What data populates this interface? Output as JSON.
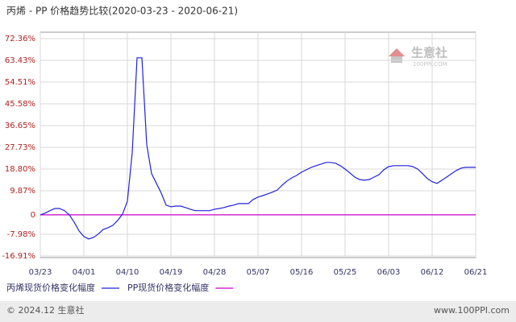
{
  "chart_data": {
    "type": "line",
    "title": "丙烯 - PP 价格趋势比较(2020-03-23 - 2020-06-21)",
    "categories": [
      "03/23",
      null,
      null,
      null,
      null,
      null,
      null,
      null,
      null,
      "04/01",
      null,
      null,
      null,
      null,
      null,
      null,
      null,
      null,
      "04/10",
      null,
      null,
      null,
      null,
      null,
      null,
      null,
      null,
      "04/19",
      null,
      null,
      null,
      null,
      null,
      null,
      null,
      null,
      "04/28",
      null,
      null,
      null,
      null,
      null,
      null,
      null,
      null,
      "05/07",
      null,
      null,
      null,
      null,
      null,
      null,
      null,
      null,
      "05/16",
      null,
      null,
      null,
      null,
      null,
      null,
      null,
      null,
      "05/25",
      null,
      null,
      null,
      null,
      null,
      null,
      null,
      null,
      "06/03",
      null,
      null,
      null,
      null,
      null,
      null,
      null,
      null,
      "06/12",
      null,
      null,
      null,
      null,
      null,
      null,
      null,
      null,
      "06/21"
    ],
    "series": [
      {
        "name": "丙烯现货价格变化幅度",
        "color": "#2222dd",
        "values": [
          0,
          0.7,
          1.7,
          2.6,
          2.6,
          1.7,
          0,
          -3.0,
          -6.6,
          -8.9,
          -9.9,
          -9.3,
          -7.9,
          -6.0,
          -5.3,
          -4.3,
          -2.3,
          0.3,
          5.6,
          25.5,
          64.5,
          64.5,
          28.8,
          16.9,
          12.9,
          8.9,
          4.0,
          3.3,
          3.6,
          3.6,
          3.0,
          2.3,
          1.7,
          1.7,
          1.7,
          1.7,
          2.3,
          2.6,
          3.0,
          3.6,
          4.0,
          4.6,
          4.6,
          4.6,
          6.3,
          7.3,
          7.9,
          8.6,
          9.3,
          10.2,
          12.2,
          13.9,
          15.2,
          16.2,
          17.5,
          18.5,
          19.5,
          20.2,
          20.8,
          21.5,
          21.5,
          21.2,
          20.2,
          18.8,
          17.2,
          15.5,
          14.5,
          14.2,
          14.5,
          15.5,
          16.5,
          18.5,
          19.8,
          20.2,
          20.2,
          20.2,
          20.2,
          19.8,
          18.8,
          16.9,
          14.9,
          13.6,
          12.9,
          14.2,
          15.5,
          16.9,
          18.2,
          19.2,
          19.5,
          19.5,
          19.5
        ]
      },
      {
        "name": "PP现货价格变化幅度",
        "color": "#cc00cc",
        "values": [
          0,
          0,
          0,
          0,
          0,
          0,
          0,
          0,
          0,
          0,
          0,
          0,
          0,
          0,
          0,
          0,
          0,
          0,
          0,
          0,
          0,
          0,
          0,
          0,
          0,
          0,
          0,
          0,
          0,
          0,
          0,
          0,
          0,
          0,
          0,
          0,
          0,
          0,
          0,
          0,
          0,
          0,
          0,
          0,
          0,
          0,
          0,
          0,
          0,
          0,
          0,
          0,
          0,
          0,
          0,
          0,
          0,
          0,
          0,
          0,
          0,
          0,
          0,
          0,
          0,
          0,
          0,
          0,
          0,
          0,
          0,
          0,
          0,
          0,
          0,
          0,
          0,
          0,
          0,
          0,
          0,
          0,
          0,
          0,
          0,
          0,
          0,
          0,
          0,
          0,
          0
        ]
      }
    ],
    "ylim": [
      -16.91,
      72.36
    ],
    "yticks": [
      {
        "value": -16.91,
        "label": "-16.91%"
      },
      {
        "value": -7.98,
        "label": "-7.98%"
      },
      0,
      {
        "value": 9.87,
        "label": "9.87%"
      },
      {
        "value": 18.8,
        "label": "18.80%"
      },
      {
        "value": 27.73,
        "label": "27.73%"
      },
      {
        "value": 36.65,
        "label": "36.65%"
      },
      {
        "value": 45.58,
        "label": "45.58%"
      },
      {
        "value": 54.51,
        "label": "54.51%"
      },
      {
        "value": 63.43,
        "label": "63.43%"
      },
      {
        "value": 72.36,
        "label": "72.36%"
      }
    ],
    "grid": true
  },
  "watermark": {
    "name": "生意社",
    "url": "100PPI.COM"
  },
  "footer": {
    "copyright": "© 2024.12 生意社",
    "site": "www.100PPI.com"
  }
}
